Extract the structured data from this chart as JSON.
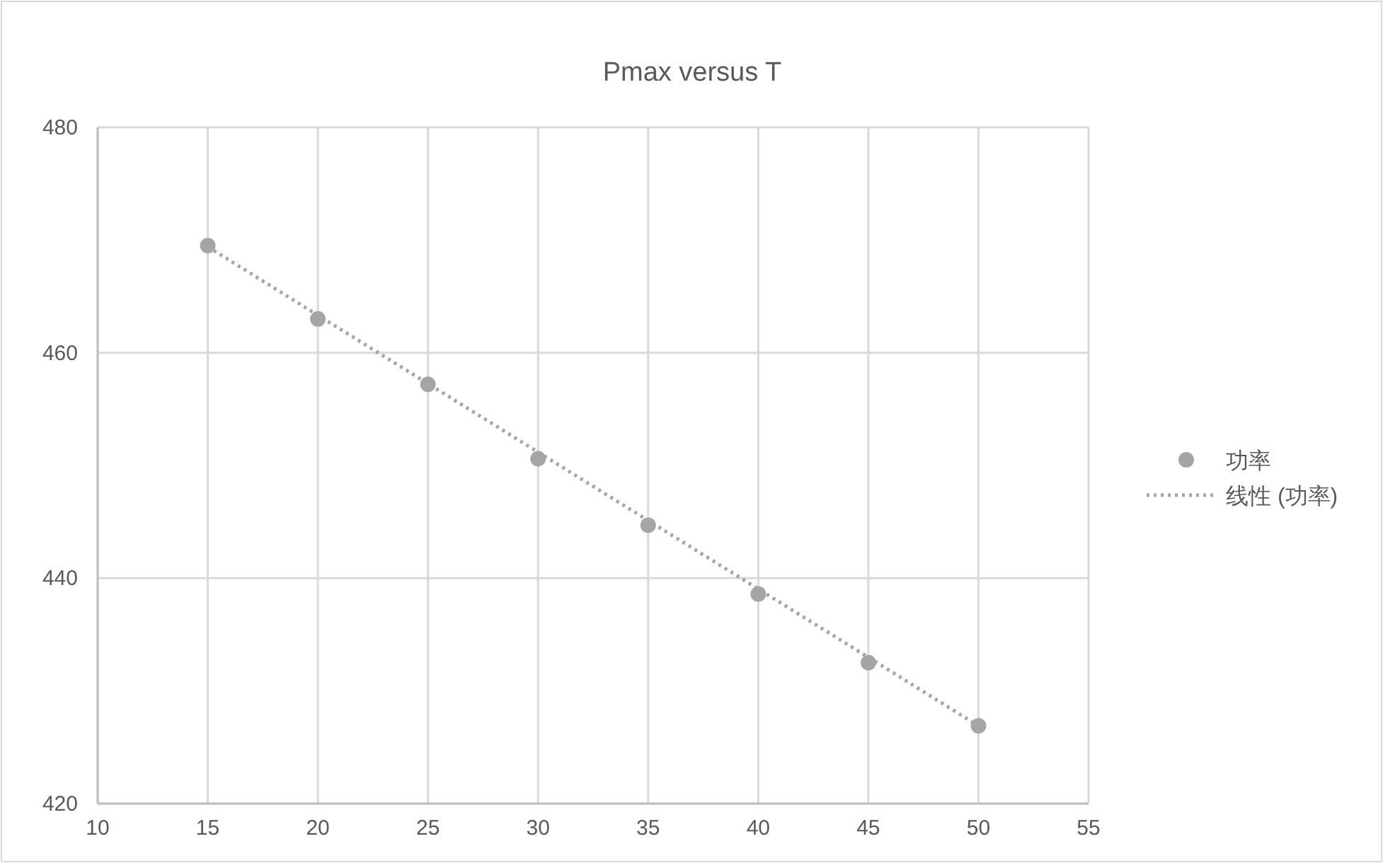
{
  "chart_data": {
    "type": "scatter",
    "title": "Pmax versus T",
    "x": [
      15,
      20,
      25,
      30,
      35,
      40,
      45,
      50
    ],
    "series": [
      {
        "name": "功率",
        "color": "#a5a5a5",
        "marker": "circle",
        "values": [
          469.5,
          463.0,
          457.2,
          450.6,
          444.7,
          438.6,
          432.5,
          426.9
        ]
      },
      {
        "name": "线性 (功率)",
        "type": "line",
        "color": "#a5a5a5",
        "line_style": "dotted",
        "marker": "none",
        "x": [
          15,
          50
        ],
        "values": [
          469.4,
          426.9
        ]
      }
    ],
    "xlim": [
      10,
      55
    ],
    "xticks": [
      10,
      15,
      20,
      25,
      30,
      35,
      40,
      45,
      50,
      55
    ],
    "ylim": [
      420,
      480
    ],
    "yticks": [
      420,
      440,
      460,
      480
    ],
    "grid": true,
    "legend": "right"
  }
}
